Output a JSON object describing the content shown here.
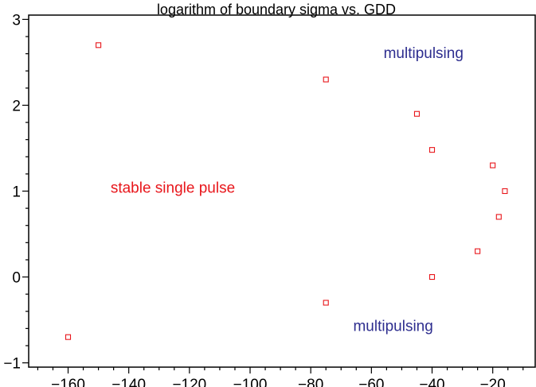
{
  "chart_data": {
    "type": "scatter",
    "title": "logarithm of boundary sigma vs. GDD",
    "xlabel": "",
    "ylabel": "",
    "xlim": [
      -173,
      -6
    ],
    "ylim": [
      -1.05,
      3.05
    ],
    "x_ticks": [
      -160,
      -140,
      -120,
      -100,
      -80,
      -60,
      -40,
      -20
    ],
    "x_tick_labels": [
      "−160",
      "−140",
      "−120",
      "−100",
      "−80",
      "−60",
      "−40",
      "−20"
    ],
    "y_ticks": [
      -1,
      0,
      1,
      2,
      3
    ],
    "y_tick_labels": [
      "−1",
      "0",
      "1",
      "2",
      "3"
    ],
    "grid": false,
    "marker": "open-square",
    "series": [
      {
        "color": "#e8161b",
        "points": [
          {
            "x": -160,
            "y": -0.7
          },
          {
            "x": -150,
            "y": 2.7
          },
          {
            "x": -75,
            "y": 2.3
          },
          {
            "x": -75,
            "y": -0.3
          },
          {
            "x": -45,
            "y": 1.9
          },
          {
            "x": -40,
            "y": 1.48
          },
          {
            "x": -40,
            "y": 0.0
          },
          {
            "x": -25,
            "y": 0.3
          },
          {
            "x": -20,
            "y": 1.3
          },
          {
            "x": -18,
            "y": 0.7
          },
          {
            "x": -16,
            "y": 1.0
          }
        ]
      }
    ],
    "annotations": [
      {
        "text": "multipulsing",
        "x": -56,
        "y": 2.55,
        "color": "#2e2e8f"
      },
      {
        "text": "stable single pulse",
        "x": -146,
        "y": 0.98,
        "color": "#e8161b"
      },
      {
        "text": "multipulsing",
        "x": -66,
        "y": -0.63,
        "color": "#2e2e8f"
      }
    ]
  }
}
